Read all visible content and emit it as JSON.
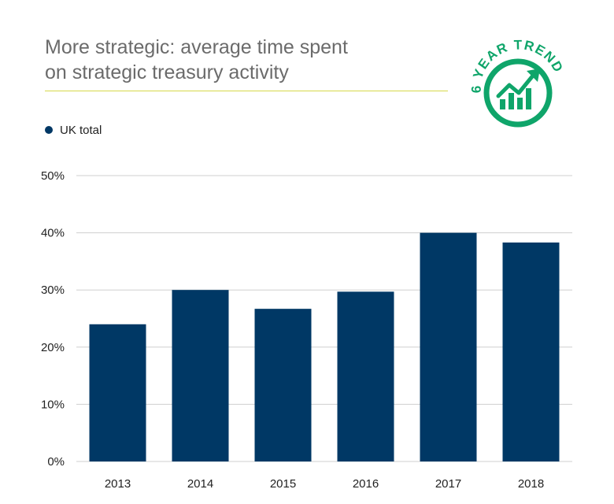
{
  "header": {
    "title_line1": "More strategic: average time spent",
    "title_line2": "on strategic treasury activity"
  },
  "badge": {
    "text": "6 YEAR TREND",
    "icon": "trend-up-bars-icon",
    "color": "#0fa56a"
  },
  "legend": {
    "label": "UK total",
    "color": "#003865"
  },
  "colors": {
    "bar": "#003865",
    "grid": "#cfcfcf",
    "axis_text": "#222222",
    "rule": "#d6d84a"
  },
  "chart_data": {
    "type": "bar",
    "title": "More strategic: average time spent on strategic treasury activity",
    "categories": [
      "2013",
      "2014",
      "2015",
      "2016",
      "2017",
      "2018"
    ],
    "series": [
      {
        "name": "UK total",
        "values": [
          24,
          30,
          26.7,
          29.7,
          40,
          38.3
        ]
      }
    ],
    "ylim": [
      0,
      50
    ],
    "yticks": [
      0,
      10,
      20,
      30,
      40,
      50
    ],
    "ytick_labels": [
      "0%",
      "10%",
      "20%",
      "30%",
      "40%",
      "50%"
    ],
    "xlabel": "",
    "ylabel": "",
    "grid": true,
    "legend": "top-left"
  }
}
